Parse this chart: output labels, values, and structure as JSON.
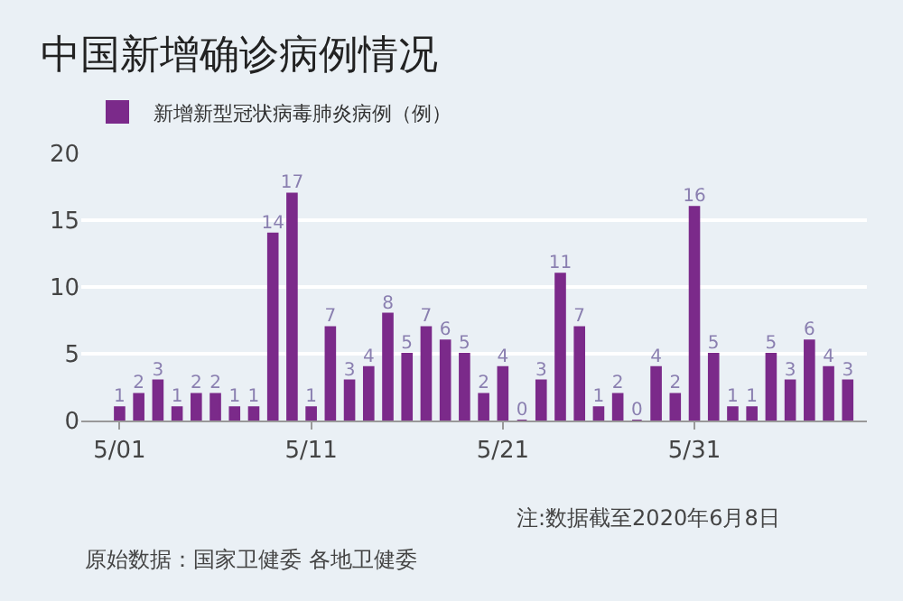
{
  "chart_data": {
    "type": "bar",
    "title": "中国新增确诊病例情况",
    "x": [
      "2020-05-01",
      "2020-05-02",
      "2020-05-03",
      "2020-05-04",
      "2020-05-05",
      "2020-05-06",
      "2020-05-07",
      "2020-05-08",
      "2020-05-09",
      "2020-05-10",
      "2020-05-11",
      "2020-05-12",
      "2020-05-13",
      "2020-05-14",
      "2020-05-15",
      "2020-05-16",
      "2020-05-17",
      "2020-05-18",
      "2020-05-19",
      "2020-05-20",
      "2020-05-21",
      "2020-05-22",
      "2020-05-23",
      "2020-05-24",
      "2020-05-25",
      "2020-05-26",
      "2020-05-27",
      "2020-05-28",
      "2020-05-29",
      "2020-05-30",
      "2020-05-31",
      "2020-06-01",
      "2020-06-02",
      "2020-06-03",
      "2020-06-04",
      "2020-06-05",
      "2020-06-06",
      "2020-06-07",
      "2020-06-08"
    ],
    "series": [
      {
        "name": "新增新型冠状病毒肺炎病例（例）",
        "color": "#7b2a8a",
        "values": [
          1,
          2,
          3,
          1,
          2,
          2,
          1,
          1,
          14,
          17,
          1,
          7,
          3,
          4,
          8,
          5,
          7,
          6,
          5,
          2,
          4,
          0,
          3,
          11,
          7,
          1,
          2,
          0,
          4,
          2,
          16,
          5,
          1,
          1,
          5,
          3,
          6,
          4,
          3
        ]
      }
    ],
    "data_labels": true,
    "xlim": [
      "2020-04-29",
      "2020-06-09"
    ],
    "xticks": [
      {
        "value": "2020-05-01",
        "label": "5/01"
      },
      {
        "value": "2020-05-11",
        "label": "5/11"
      },
      {
        "value": "2020-05-21",
        "label": "5/21"
      },
      {
        "value": "2020-05-31",
        "label": "5/31"
      }
    ],
    "ylim": [
      0,
      20
    ],
    "yticks": [
      0,
      5,
      10,
      15,
      20
    ],
    "grid": "y",
    "legend": "top left",
    "annotations": [
      "注:数据截至2020年6月8日",
      "原始数据：国家卫健委 各地卫健委"
    ]
  }
}
